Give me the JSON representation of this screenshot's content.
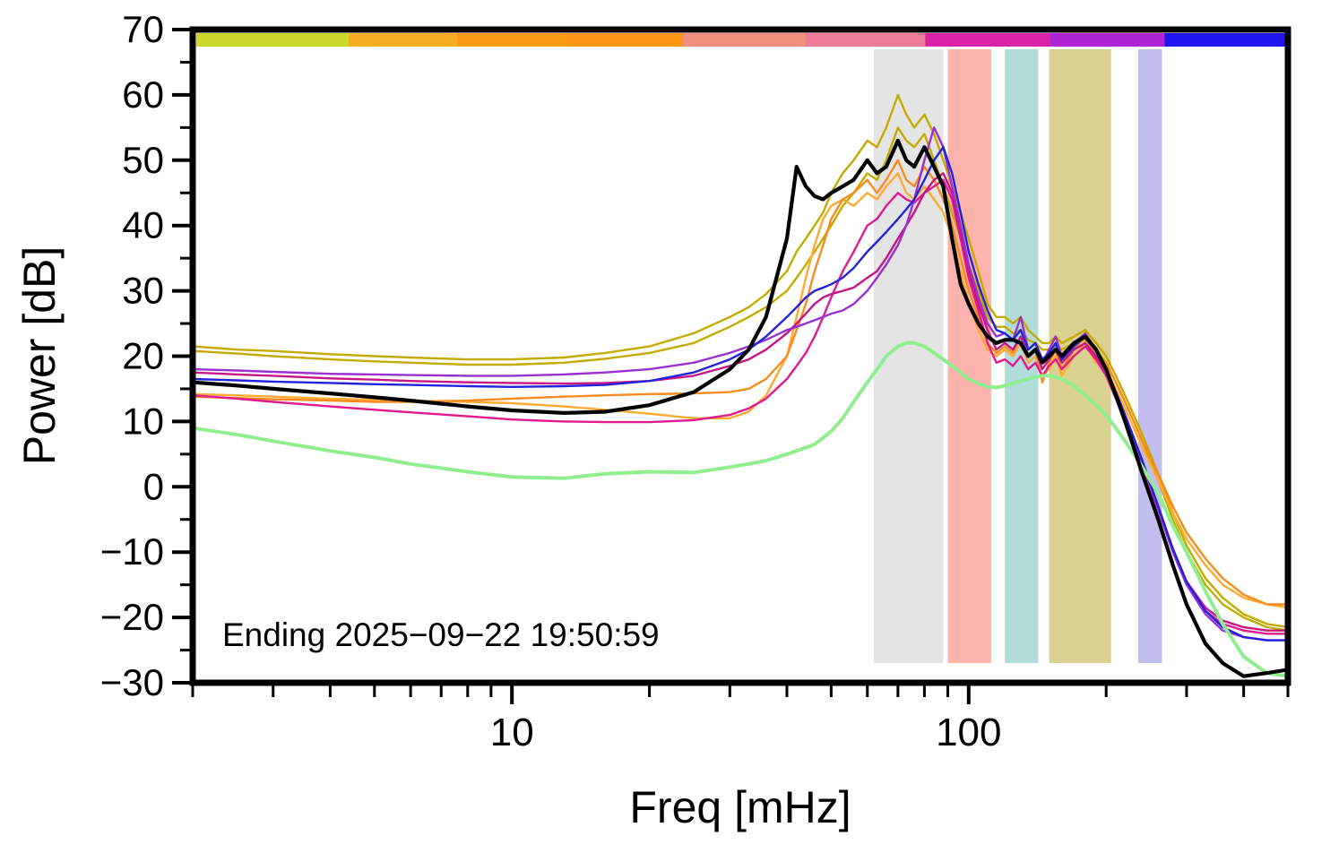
{
  "figure": {
    "ylabel": "Power [dB]",
    "xlabel": "Freq [mHz]",
    "annotation": "Ending 2025−09−22 19:50:59"
  },
  "chart_data": {
    "type": "line",
    "title": "",
    "xlabel": "Freq [mHz]",
    "ylabel": "Power [dB]",
    "x_scale": "log",
    "xlim": [
      2,
      500
    ],
    "ylim": [
      -30,
      70
    ],
    "grid": false,
    "legend": null,
    "annotation": "Ending 2025−09−22 19:50:59",
    "x_major_ticks": [
      10,
      100
    ],
    "x_tick_labels": [
      "10",
      "100"
    ],
    "x_minor_ticks": [
      2,
      3,
      4,
      5,
      6,
      7,
      8,
      9,
      20,
      30,
      40,
      50,
      60,
      70,
      80,
      90,
      200,
      300,
      400,
      500
    ],
    "y_major_ticks": [
      -30,
      -20,
      -10,
      0,
      10,
      20,
      30,
      40,
      50,
      60,
      70
    ],
    "y_tick_labels": [
      "−30",
      "−20",
      "−10",
      "0",
      "10",
      "20",
      "30",
      "40",
      "50",
      "60",
      "70"
    ],
    "y_minor_ticks": [
      -25,
      -15,
      -5,
      5,
      15,
      25,
      35,
      45,
      55,
      65
    ],
    "frame_color": "#000000",
    "top_strip_segments": [
      {
        "f0": 0.0,
        "f1": 0.14,
        "color": "#ccd92b"
      },
      {
        "f0": 0.14,
        "f1": 0.24,
        "color": "#f6ad1f"
      },
      {
        "f0": 0.24,
        "f1": 0.34,
        "color": "#fb9d13"
      },
      {
        "f0": 0.34,
        "f1": 0.447,
        "color": "#fc9414"
      },
      {
        "f0": 0.447,
        "f1": 0.56,
        "color": "#f28e7d"
      },
      {
        "f0": 0.56,
        "f1": 0.67,
        "color": "#ee7b96"
      },
      {
        "f0": 0.67,
        "f1": 0.785,
        "color": "#d922a8"
      },
      {
        "f0": 0.785,
        "f1": 0.89,
        "color": "#ad25d6"
      },
      {
        "f0": 0.89,
        "f1": 1.0,
        "color": "#2016ee"
      }
    ],
    "bands": [
      {
        "x0": 62,
        "x1": 88,
        "color": "#e4e4e4"
      },
      {
        "x0": 90,
        "x1": 112,
        "color": "#ffb3ad"
      },
      {
        "x0": 120,
        "x1": 142,
        "color": "#b2dcd9"
      },
      {
        "x0": 150,
        "x1": 205,
        "color": "#d8d18f"
      },
      {
        "x0": 235,
        "x1": 265,
        "color": "#c3bef0"
      }
    ],
    "x": [
      2,
      2.5,
      3,
      4,
      5,
      6,
      8,
      10,
      13,
      16,
      20,
      25,
      30,
      33,
      36,
      40,
      42,
      44,
      46,
      48,
      50,
      53,
      56,
      60,
      63,
      66,
      70,
      73,
      76,
      80,
      84,
      88,
      92,
      96,
      100,
      105,
      110,
      115,
      120,
      125,
      130,
      135,
      140,
      145,
      150,
      155,
      160,
      170,
      180,
      190,
      200,
      210,
      220,
      230,
      240,
      260,
      280,
      300,
      330,
      360,
      400,
      450,
      500
    ],
    "series": [
      {
        "name": "spectrum-yellow-1",
        "color": "#c3ab00",
        "width": 2.4,
        "y": [
          21.5,
          21,
          20.8,
          20.3,
          20,
          19.8,
          19.5,
          19.5,
          19.8,
          20.5,
          21.5,
          23.5,
          26,
          27.5,
          29.5,
          33,
          36,
          38,
          40,
          42,
          45,
          48,
          50,
          53,
          52,
          55,
          60,
          57,
          55,
          57,
          54,
          50,
          46,
          42,
          38,
          33,
          28,
          26,
          26,
          25,
          26,
          24,
          23,
          22,
          22,
          23,
          22,
          23,
          24,
          22,
          20,
          17,
          14,
          11,
          8,
          2,
          -4,
          -9,
          -14,
          -17,
          -19.5,
          -21,
          -21.5
        ]
      },
      {
        "name": "spectrum-yellow-2",
        "color": "#c3ab00",
        "width": 2.4,
        "y": [
          20.8,
          20.4,
          20,
          19.5,
          19.2,
          19,
          18.7,
          18.7,
          19,
          19.6,
          20.5,
          22,
          24.5,
          26,
          27.5,
          30,
          32,
          34,
          36,
          38,
          40,
          43,
          45,
          48,
          47,
          50,
          55,
          53,
          52,
          54,
          50,
          46,
          42,
          38,
          34,
          30,
          26,
          24.5,
          24.5,
          23.5,
          24,
          22.5,
          22,
          21,
          21,
          21.5,
          21,
          22,
          22.5,
          21,
          19,
          16,
          13,
          10,
          7,
          1,
          -5,
          -10,
          -15,
          -18,
          -20,
          -21.5,
          -22
        ]
      },
      {
        "name": "spectrum-orange-1",
        "color": "#ffaa33",
        "width": 2.4,
        "y": [
          14.2,
          14,
          13.8,
          13.5,
          13.3,
          13.2,
          13,
          12.8,
          12.3,
          11.8,
          11.2,
          10.5,
          10.5,
          11.5,
          14,
          20,
          26,
          32,
          37,
          41,
          43,
          44,
          43,
          45,
          44,
          46,
          48,
          45,
          44,
          46,
          44,
          42,
          38,
          33,
          28,
          24,
          21,
          20,
          21,
          20,
          22,
          19,
          20,
          17,
          18,
          20,
          17,
          20,
          22,
          19,
          18,
          15,
          12,
          9,
          6,
          1,
          -4,
          -8,
          -12,
          -15,
          -17,
          -18,
          -18.5
        ]
      },
      {
        "name": "spectrum-orange-2",
        "color": "#f78b1e",
        "width": 2.4,
        "y": [
          13.8,
          13.6,
          13.4,
          13.2,
          13,
          13,
          13.2,
          13.5,
          13.8,
          14,
          14.2,
          14.3,
          14.5,
          15,
          16.5,
          20,
          24,
          28,
          33,
          37,
          41,
          44,
          45,
          47,
          45,
          47,
          50,
          47,
          46,
          49,
          47,
          44,
          40,
          35,
          30,
          26,
          22,
          20.5,
          21.5,
          20.5,
          23,
          20,
          21,
          16,
          19,
          21,
          18,
          21,
          23,
          20,
          19,
          16,
          13,
          10,
          7,
          2,
          -3,
          -7,
          -11,
          -14,
          -16.5,
          -18,
          -18
        ]
      },
      {
        "name": "spectrum-magenta-1",
        "color": "#e2198f",
        "width": 2.4,
        "y": [
          14,
          13.5,
          13,
          12.3,
          11.8,
          11.4,
          10.8,
          10.3,
          10,
          9.9,
          9.9,
          10.2,
          11,
          12,
          13.5,
          16.5,
          18.5,
          20.5,
          23,
          26,
          29,
          33,
          36,
          40,
          41,
          43,
          45,
          44,
          43.5,
          45,
          46,
          47,
          44,
          38,
          32,
          27,
          22,
          19,
          19.5,
          18.5,
          20,
          18,
          19,
          17,
          18.5,
          19.5,
          18,
          20,
          21.5,
          19.5,
          17,
          13.5,
          10,
          6.5,
          3,
          -3.5,
          -10,
          -15,
          -19,
          -21,
          -22,
          -22.5,
          -22.5
        ]
      },
      {
        "name": "spectrum-magenta-2",
        "color": "#c71585",
        "width": 2.4,
        "y": [
          17.5,
          17.2,
          17,
          16.6,
          16.4,
          16.2,
          16,
          15.9,
          15.8,
          15.9,
          16.2,
          17,
          18.5,
          19.5,
          21,
          23.5,
          25,
          26.5,
          28,
          29,
          29.5,
          30,
          30.5,
          32,
          33,
          35,
          38,
          40,
          42,
          45,
          47,
          48,
          45,
          39,
          33,
          28,
          24,
          21,
          22,
          21,
          23,
          20,
          21,
          18,
          19.5,
          21,
          19,
          21,
          22,
          20,
          17.5,
          14,
          10.5,
          7,
          3.5,
          -3,
          -9.5,
          -14.5,
          -18.5,
          -20.5,
          -21.5,
          -22,
          -22
        ]
      },
      {
        "name": "spectrum-purple",
        "color": "#9b30d0",
        "width": 2.4,
        "y": [
          18,
          17.8,
          17.6,
          17.3,
          17.2,
          17.1,
          17,
          17,
          17.2,
          17.5,
          18,
          19,
          20.5,
          21.5,
          22.5,
          24,
          24.5,
          25,
          25.5,
          26,
          26.5,
          27,
          28,
          30,
          32,
          34,
          37,
          40,
          44,
          50,
          55,
          52,
          46,
          40,
          34,
          29,
          25,
          23,
          23.5,
          22.5,
          26,
          21,
          22,
          19,
          21,
          23,
          20,
          22,
          23.5,
          21,
          18,
          14.5,
          11,
          7,
          3.5,
          -3.5,
          -10,
          -15,
          -19.5,
          -22,
          -23,
          -23.5,
          -23.5
        ]
      },
      {
        "name": "spectrum-blue",
        "color": "#2222dd",
        "width": 2.4,
        "y": [
          16.5,
          16.3,
          16.1,
          15.9,
          15.7,
          15.6,
          15.4,
          15.3,
          15.4,
          15.6,
          16.2,
          17.5,
          19.5,
          21,
          23,
          26,
          27.5,
          29,
          30,
          30.5,
          31,
          32,
          33.5,
          36,
          37.5,
          39,
          41,
          42.5,
          44,
          47,
          50,
          52,
          48,
          42,
          36,
          31,
          27,
          24,
          23.5,
          22.5,
          24,
          21,
          22,
          19.5,
          20.5,
          22,
          19.5,
          21.5,
          23,
          21,
          18,
          14.5,
          11,
          7.5,
          4,
          -3,
          -9.5,
          -14.5,
          -19,
          -21.5,
          -23,
          -23.5,
          -23.5
        ]
      },
      {
        "name": "spectrum-green",
        "color": "#90ee90",
        "width": 4,
        "y": [
          9,
          8,
          7,
          5.5,
          4.5,
          3.5,
          2.3,
          1.5,
          1.3,
          2,
          2.3,
          2.2,
          3,
          3.5,
          4,
          5,
          5.5,
          6,
          6.5,
          7.5,
          8.5,
          10.5,
          13,
          16,
          18,
          20,
          21.5,
          22,
          22,
          21.5,
          20.5,
          19.5,
          18.5,
          17.5,
          16.5,
          15.8,
          15.3,
          15.2,
          15.5,
          15.8,
          16.2,
          16.5,
          16.8,
          17,
          17,
          16.8,
          16.5,
          15.5,
          14,
          12.5,
          11,
          9,
          7,
          5,
          3,
          -1,
          -6,
          -10,
          -16,
          -21,
          -26,
          -28.5,
          -29
        ]
      },
      {
        "name": "spectrum-black",
        "color": "#000000",
        "width": 4.2,
        "y": [
          16,
          15.5,
          15,
          14.3,
          13.7,
          13.2,
          12.3,
          11.7,
          11.3,
          11.5,
          12.5,
          14.5,
          18,
          21,
          26,
          38,
          49,
          46,
          44.5,
          44,
          45,
          46,
          47,
          50,
          48,
          49,
          53,
          50,
          49,
          52,
          49,
          46,
          38,
          31,
          28,
          25,
          23,
          22,
          22.5,
          22.5,
          22,
          20,
          21,
          19,
          20,
          21,
          20,
          22,
          23,
          21,
          18,
          14,
          10,
          6,
          2,
          -5,
          -12,
          -18,
          -24,
          -27,
          -29,
          -28.5,
          -28
        ]
      }
    ]
  }
}
